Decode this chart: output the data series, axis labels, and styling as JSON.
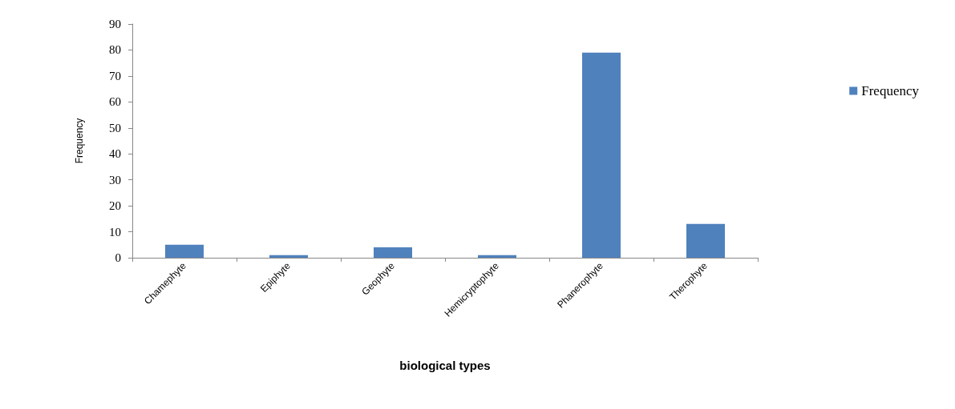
{
  "chart_data": {
    "type": "bar",
    "xlabel": "biological types",
    "ylabel": "Frequency",
    "categories": [
      "Chamephyte",
      "Epiphyte",
      "Geophyte",
      "Hemicryptophyte",
      "Phanerophyte",
      "Therophyte"
    ],
    "series": [
      {
        "name": "Frequency",
        "color": "#4f81bd",
        "values": [
          5,
          1,
          4,
          1,
          79,
          13
        ]
      }
    ],
    "ylim": [
      0,
      90
    ],
    "yticks": [
      0,
      10,
      20,
      30,
      40,
      50,
      60,
      70,
      80,
      90
    ],
    "grid": false,
    "legend": "right"
  }
}
